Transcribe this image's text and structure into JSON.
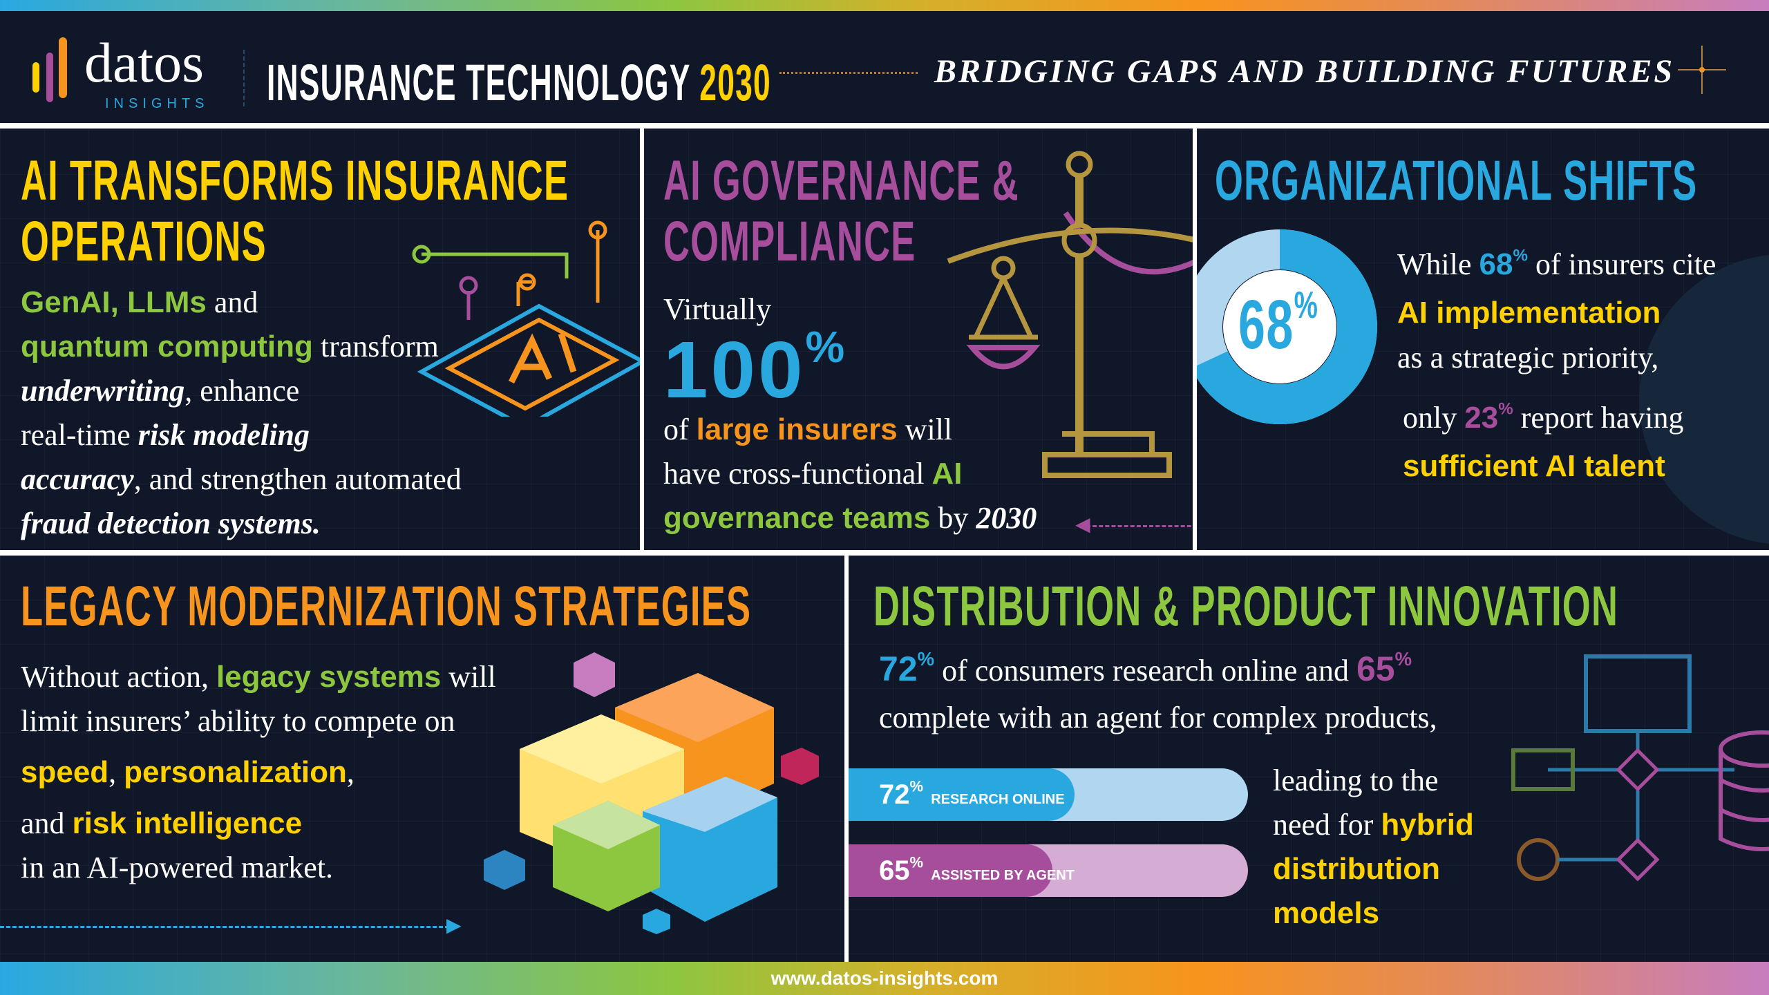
{
  "header": {
    "logo_word": "datos",
    "logo_sub": "INSIGHTS",
    "title": "INSURANCE TECHNOLOGY",
    "title_year": "2030",
    "tagline": "BRIDGING GAPS AND BUILDING FUTURES"
  },
  "p1": {
    "title1": "AI TRANSFORMS INSURANCE",
    "title2": "OPERATIONS",
    "l1a": "GenAI, LLMs",
    "l1b": " and",
    "l2a": "quantum computing",
    "l2b": " transform",
    "l3a": "underwriting",
    "l3b": ", enhance",
    "l4a": "real-time ",
    "l4b": "risk modeling",
    "l5a": "accuracy",
    "l5b": ", and strengthen automated",
    "l6": "fraud detection systems."
  },
  "p2": {
    "title1": "AI GOVERNANCE &",
    "title2": "COMPLIANCE",
    "l1": "Virtually",
    "big": "100",
    "pct": "%",
    "l3a": "of ",
    "l3b": "large insurers",
    "l3c": " will",
    "l4a": "have cross-functional ",
    "l4b": "AI",
    "l5a": "governance teams",
    "l5b": " by ",
    "l5c": "2030"
  },
  "p3": {
    "title": "ORGANIZATIONAL SHIFTS",
    "donut_label": "68",
    "donut_pct": "%",
    "donut_value": 68,
    "l1a": "While ",
    "l1b": "68",
    "l1c": " of insurers cite",
    "l2": "AI implementation",
    "l3": "as a strategic priority,",
    "l4a": "only ",
    "l4b": "23",
    "l4c": " report having",
    "l5": "sufficient AI talent"
  },
  "p4": {
    "title": "LEGACY MODERNIZATION STRATEGIES",
    "l1a": "Without action, ",
    "l1b": "legacy systems",
    "l1c": " will",
    "l2": "limit insurers’ ability to compete on",
    "l3a": "speed",
    "l3b": ", ",
    "l3c": "personalization",
    "l3d": ",",
    "l4a": "and ",
    "l4b": "risk intelligence",
    "l5": "in an AI-powered market."
  },
  "p5": {
    "title": "DISTRIBUTION & PRODUCT INNOVATION",
    "l1a": "72",
    "l1b": " of consumers research online and ",
    "l1c": "65",
    "l2": "complete with an agent for complex products,",
    "bars": [
      {
        "value": "72",
        "label": "RESEARCH ONLINE",
        "fill": 72,
        "color": "#29a8e0",
        "track": "#b0d6f0"
      },
      {
        "value": "65",
        "label": "ASSISTED BY AGENT",
        "fill": 65,
        "color": "#a64d9c",
        "track": "#d4acd4"
      }
    ],
    "r1": "leading to the",
    "r2a": "need for ",
    "r2b": "hybrid",
    "r3": "distribution",
    "r4": "models",
    "pct": "%"
  },
  "footer": {
    "url": "www.datos-insights.com"
  }
}
